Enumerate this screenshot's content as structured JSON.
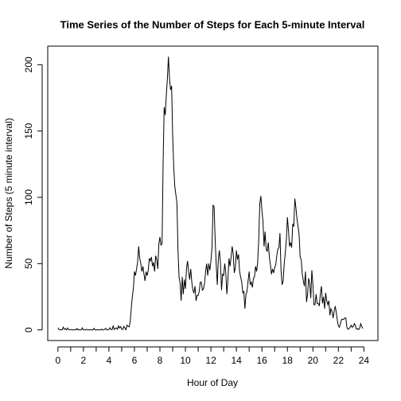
{
  "chart_data": {
    "type": "line",
    "title": "Time Series of the Number of Steps for Each 5-minute Interval",
    "xlabel": "Hour of Day",
    "ylabel": "Number of Steps (5 minute interval)",
    "color": "#000000",
    "xlim": [
      -0.8,
      25.1
    ],
    "ylim": [
      -8,
      214
    ],
    "xticks": [
      0,
      2,
      4,
      6,
      8,
      10,
      12,
      14,
      16,
      18,
      20,
      22,
      24
    ],
    "xminor_ticks": [
      1,
      3,
      5,
      7,
      9,
      11,
      13,
      15,
      17,
      19,
      21,
      23
    ],
    "yticks": [
      0,
      50,
      100,
      150,
      200
    ],
    "x": [
      0,
      0.083,
      0.167,
      0.25,
      0.333,
      0.417,
      0.5,
      0.583,
      0.667,
      0.75,
      0.833,
      0.917,
      1,
      1.083,
      1.167,
      1.25,
      1.333,
      1.417,
      1.5,
      1.583,
      1.667,
      1.75,
      1.833,
      1.917,
      2,
      2.083,
      2.167,
      2.25,
      2.333,
      2.417,
      2.5,
      2.583,
      2.667,
      2.75,
      2.833,
      2.917,
      3,
      3.083,
      3.167,
      3.25,
      3.333,
      3.417,
      3.5,
      3.583,
      3.667,
      3.75,
      3.833,
      3.917,
      4,
      4.083,
      4.167,
      4.25,
      4.333,
      4.417,
      4.5,
      4.583,
      4.667,
      4.75,
      4.833,
      4.917,
      5,
      5.083,
      5.167,
      5.25,
      5.333,
      5.417,
      5.5,
      5.583,
      5.667,
      5.75,
      5.833,
      5.917,
      6,
      6.083,
      6.167,
      6.25,
      6.333,
      6.417,
      6.5,
      6.583,
      6.667,
      6.75,
      6.833,
      6.917,
      7,
      7.083,
      7.167,
      7.25,
      7.333,
      7.417,
      7.5,
      7.583,
      7.667,
      7.75,
      7.833,
      7.917,
      8,
      8.083,
      8.167,
      8.25,
      8.333,
      8.417,
      8.5,
      8.583,
      8.667,
      8.75,
      8.833,
      8.917,
      9,
      9.083,
      9.167,
      9.25,
      9.333,
      9.417,
      9.5,
      9.583,
      9.667,
      9.75,
      9.833,
      9.917,
      10,
      10.083,
      10.167,
      10.25,
      10.333,
      10.417,
      10.5,
      10.583,
      10.667,
      10.75,
      10.833,
      10.917,
      11,
      11.083,
      11.167,
      11.25,
      11.333,
      11.417,
      11.5,
      11.583,
      11.667,
      11.75,
      11.833,
      11.917,
      12,
      12.083,
      12.167,
      12.25,
      12.333,
      12.417,
      12.5,
      12.583,
      12.667,
      12.75,
      12.833,
      12.917,
      13,
      13.083,
      13.167,
      13.25,
      13.333,
      13.417,
      13.5,
      13.583,
      13.667,
      13.75,
      13.833,
      13.917,
      14,
      14.083,
      14.167,
      14.25,
      14.333,
      14.417,
      14.5,
      14.583,
      14.667,
      14.75,
      14.833,
      14.917,
      15,
      15.083,
      15.167,
      15.25,
      15.333,
      15.417,
      15.5,
      15.583,
      15.667,
      15.75,
      15.833,
      15.917,
      16,
      16.083,
      16.167,
      16.25,
      16.333,
      16.417,
      16.5,
      16.583,
      16.667,
      16.75,
      16.833,
      16.917,
      17,
      17.083,
      17.167,
      17.25,
      17.333,
      17.417,
      17.5,
      17.583,
      17.667,
      17.75,
      17.833,
      17.917,
      18,
      18.083,
      18.167,
      18.25,
      18.333,
      18.417,
      18.5,
      18.583,
      18.667,
      18.75,
      18.833,
      18.917,
      19,
      19.083,
      19.167,
      19.25,
      19.333,
      19.417,
      19.5,
      19.583,
      19.667,
      19.75,
      19.833,
      19.917,
      20,
      20.083,
      20.167,
      20.25,
      20.333,
      20.417,
      20.5,
      20.583,
      20.667,
      20.75,
      20.833,
      20.917,
      21,
      21.083,
      21.167,
      21.25,
      21.333,
      21.417,
      21.5,
      21.583,
      21.667,
      21.75,
      21.833,
      21.917,
      22,
      22.083,
      22.167,
      22.25,
      22.333,
      22.417,
      22.5,
      22.583,
      22.667,
      22.75,
      22.833,
      22.917,
      23,
      23.083,
      23.167,
      23.25,
      23.333,
      23.417,
      23.5,
      23.583,
      23.667,
      23.75,
      23.833,
      23.917
    ],
    "values": [
      1.7,
      0.3,
      0.1,
      0.2,
      0.1,
      2.1,
      0.5,
      0.9,
      0,
      1.5,
      0.3,
      0.1,
      0.3,
      0.2,
      0,
      0,
      0.4,
      0,
      1.1,
      0,
      0.2,
      0,
      0,
      1.6,
      0,
      0,
      0,
      0.5,
      0,
      0,
      0.2,
      0,
      0,
      0,
      1.2,
      0,
      0,
      0.2,
      0,
      0,
      0,
      0.6,
      0,
      0,
      0.5,
      1.2,
      0,
      0,
      0.3,
      1.6,
      0.3,
      0.2,
      3,
      0.4,
      1.2,
      1.5,
      0.5,
      3,
      1.5,
      2.5,
      0.5,
      0.3,
      2.6,
      1.5,
      0.1,
      3.5,
      2.8,
      2.3,
      6,
      16,
      25,
      31,
      44,
      41,
      46,
      51,
      63,
      54,
      50,
      44,
      48,
      42,
      37,
      44,
      41,
      45,
      54,
      52,
      55,
      48,
      51,
      44,
      56,
      53,
      46,
      65,
      70,
      64,
      65,
      126,
      168,
      162,
      177,
      189,
      206,
      190,
      181,
      184,
      146,
      123,
      108,
      102,
      96,
      60,
      40,
      35,
      22,
      40,
      27,
      38,
      31,
      46,
      52,
      44,
      38,
      46,
      36,
      30,
      28,
      33,
      22,
      26,
      26,
      29,
      36,
      36,
      30,
      31,
      35,
      44,
      50,
      41,
      50,
      45,
      52,
      62,
      94,
      93,
      68,
      49,
      34,
      54,
      60,
      50,
      30,
      42,
      41,
      50,
      43,
      27,
      38,
      54,
      48,
      55,
      63,
      57,
      43,
      47,
      60,
      53,
      57,
      44,
      40,
      36,
      28,
      29,
      16,
      27,
      29,
      37,
      44,
      34,
      36,
      32,
      39,
      40,
      48,
      44,
      51,
      68,
      95,
      101,
      90,
      82,
      63,
      74,
      61,
      59,
      66,
      55,
      49,
      42,
      46,
      43,
      47,
      49,
      56,
      61,
      62,
      73,
      45,
      34,
      37,
      50,
      58,
      68,
      85,
      75,
      63,
      66,
      62,
      80,
      78,
      99,
      92,
      84,
      78,
      72,
      55,
      53,
      42,
      37,
      33,
      44,
      21,
      27,
      39,
      35,
      24,
      45,
      34,
      19,
      19,
      27,
      20,
      20,
      18,
      27,
      33,
      20,
      25,
      16,
      28,
      22,
      19,
      22,
      11,
      16,
      14,
      9,
      14,
      18,
      13,
      7,
      3,
      2,
      5,
      8,
      8,
      8,
      9,
      9,
      2,
      0.5,
      1,
      2,
      3.5,
      2,
      2.6,
      4.7,
      3.3,
      0.6,
      1,
      0.3,
      1.2,
      4.7,
      2.6,
      1.1
    ]
  }
}
